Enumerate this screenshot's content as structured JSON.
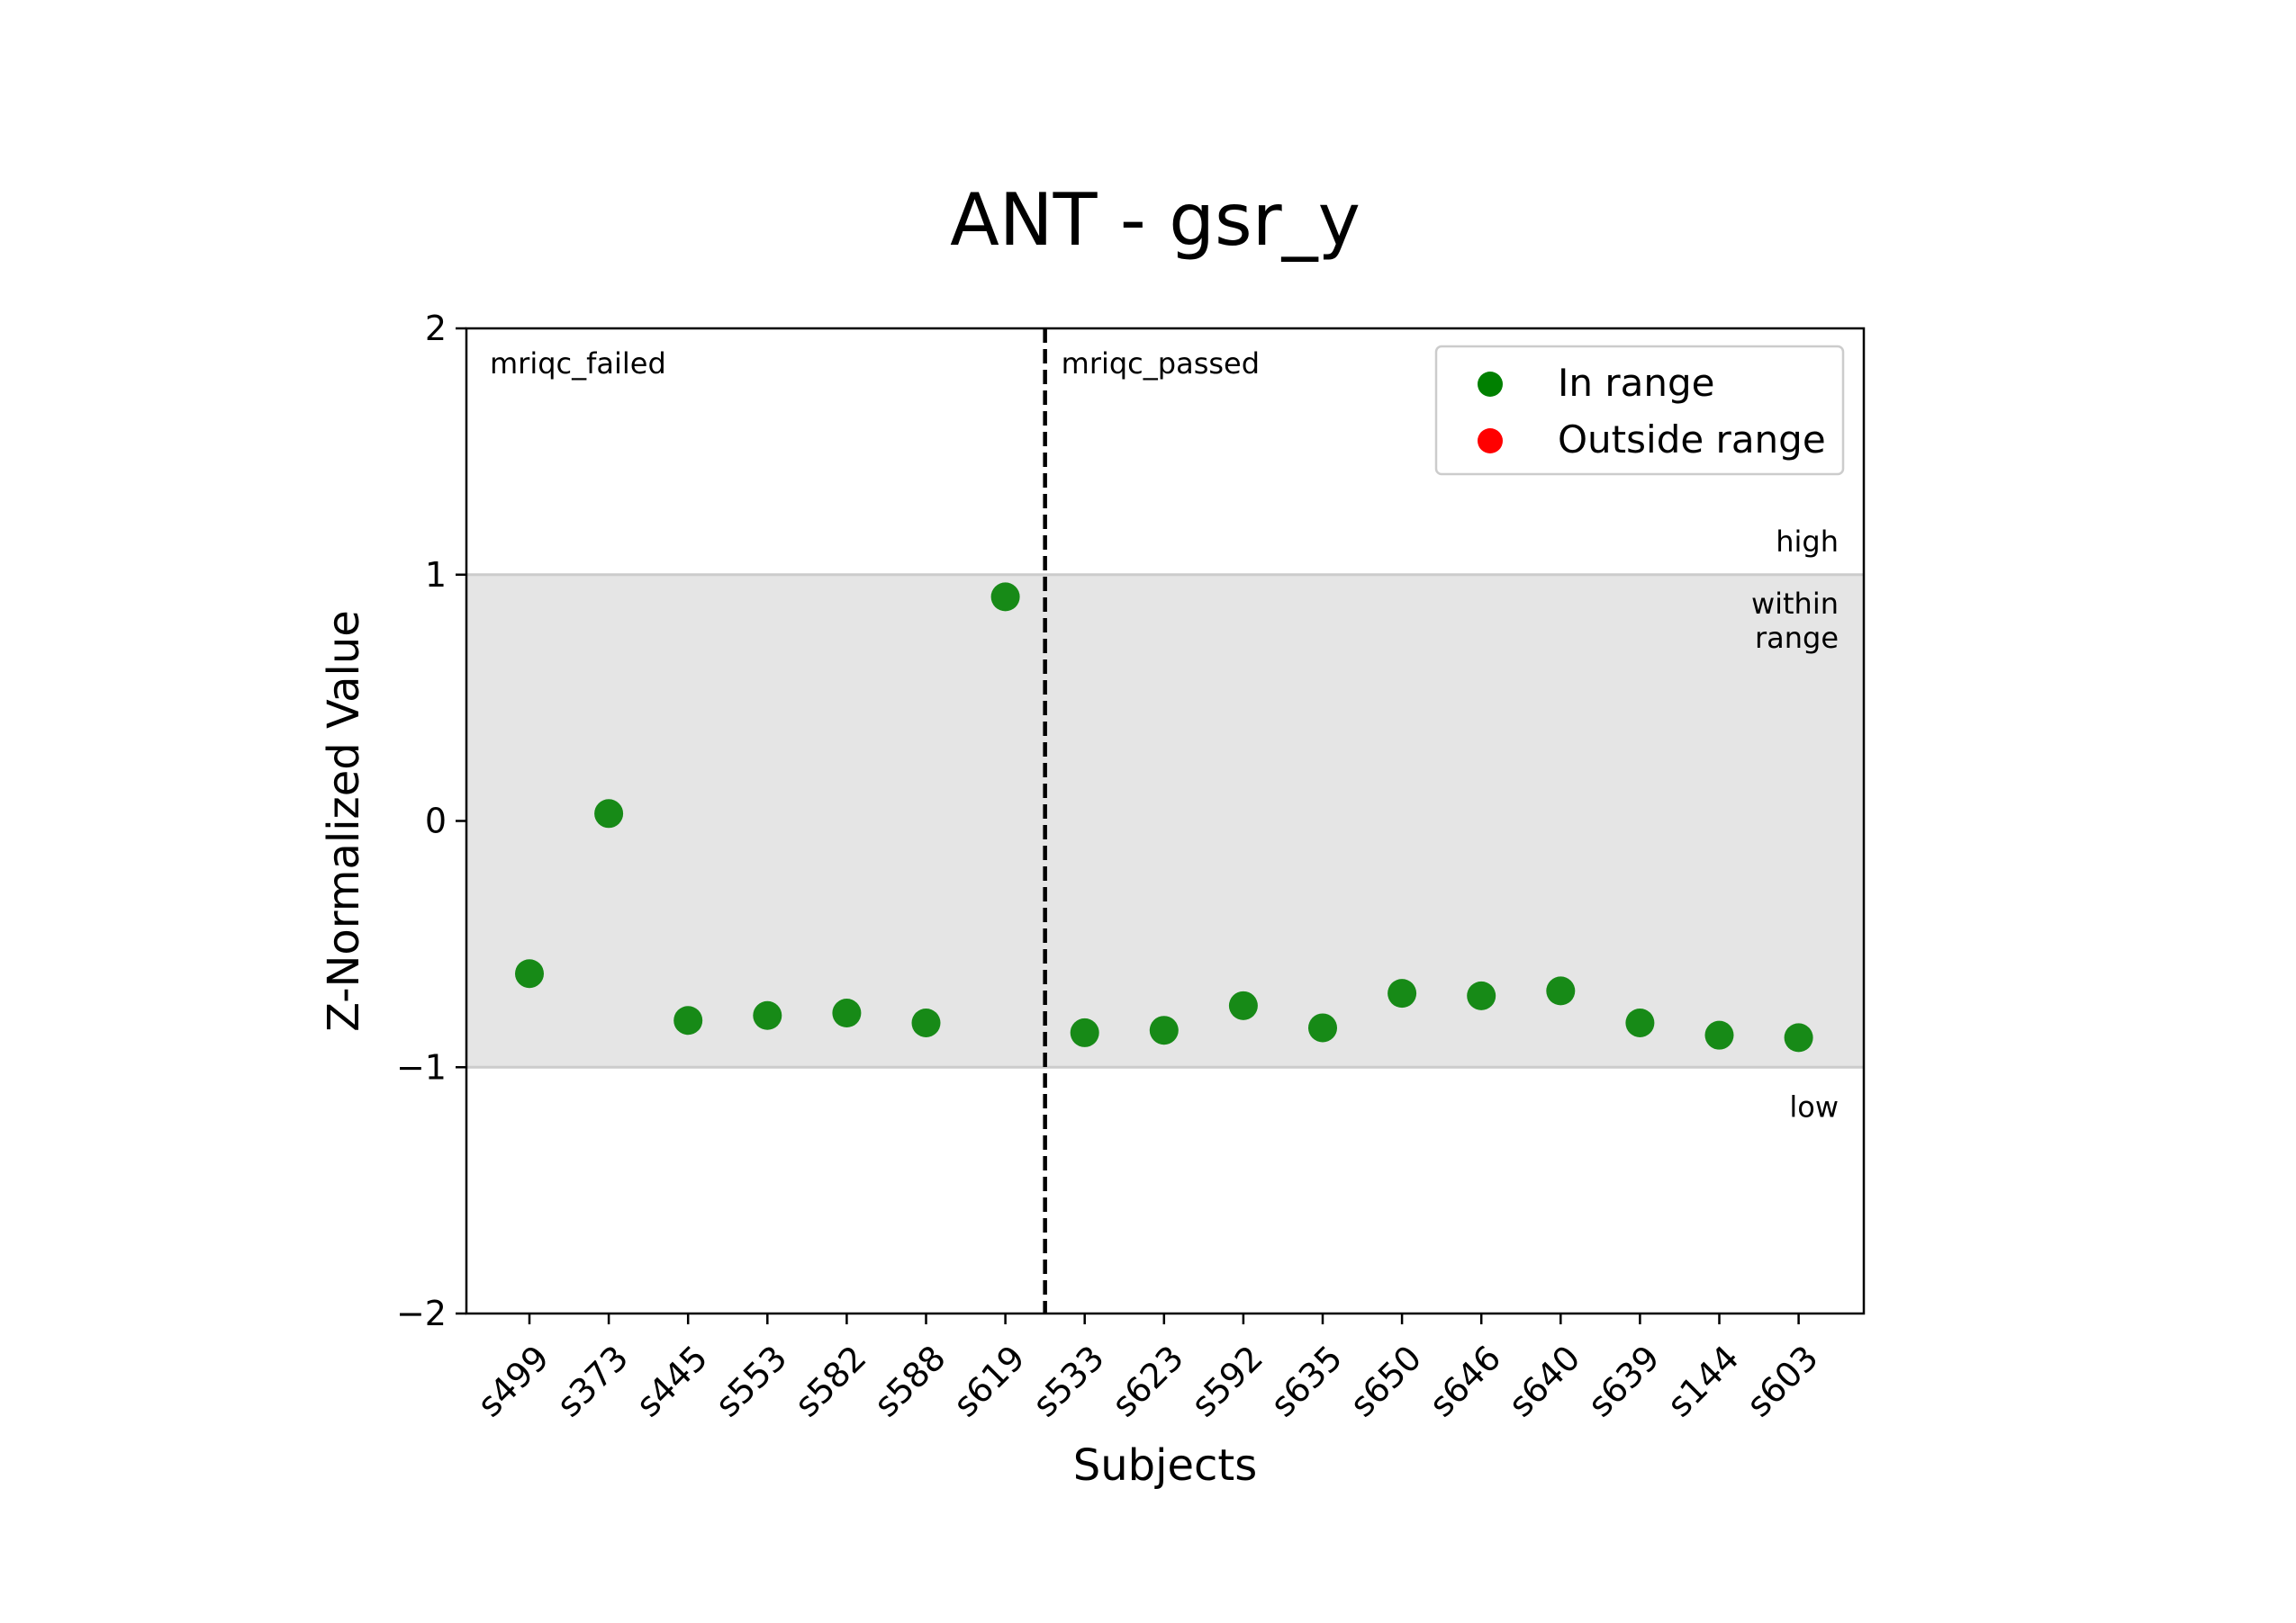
{
  "chart_data": {
    "type": "scatter",
    "title": "ANT - gsr_y",
    "xlabel": "Subjects",
    "ylabel": "Z-Normalized Value",
    "ylim": [
      -2,
      2
    ],
    "yticks": [
      2,
      1,
      0,
      -1,
      -2
    ],
    "ytick_labels": [
      "2",
      "1",
      "0",
      "−1",
      "−2"
    ],
    "categories": [
      "s499",
      "s373",
      "s445",
      "s553",
      "s582",
      "s588",
      "s619",
      "s533",
      "s623",
      "s592",
      "s635",
      "s650",
      "s646",
      "s640",
      "s639",
      "s144",
      "s603"
    ],
    "series": [
      {
        "name": "In range",
        "color": "#008000",
        "values": [
          -0.62,
          0.03,
          -0.81,
          -0.79,
          -0.78,
          -0.82,
          0.91,
          -0.86,
          -0.85,
          -0.75,
          -0.84,
          -0.7,
          -0.71,
          -0.69,
          -0.82,
          -0.87,
          -0.88
        ]
      },
      {
        "name": "Outside range",
        "color": "#ff0000",
        "values": []
      }
    ],
    "range_band": {
      "low": -1,
      "high": 1,
      "color": "#e5e5e5"
    },
    "band_labels": {
      "high": "high",
      "within_line1": "within",
      "within_line2": "range",
      "low": "low"
    },
    "group_divider": {
      "after_index": 6
    },
    "group_labels": {
      "left": "mriqc_failed",
      "right": "mriqc_passed"
    },
    "legend": {
      "position": "upper right",
      "entries": [
        {
          "label": "In range",
          "color": "#008000"
        },
        {
          "label": "Outside range",
          "color": "#ff0000"
        }
      ]
    },
    "grid": false
  }
}
